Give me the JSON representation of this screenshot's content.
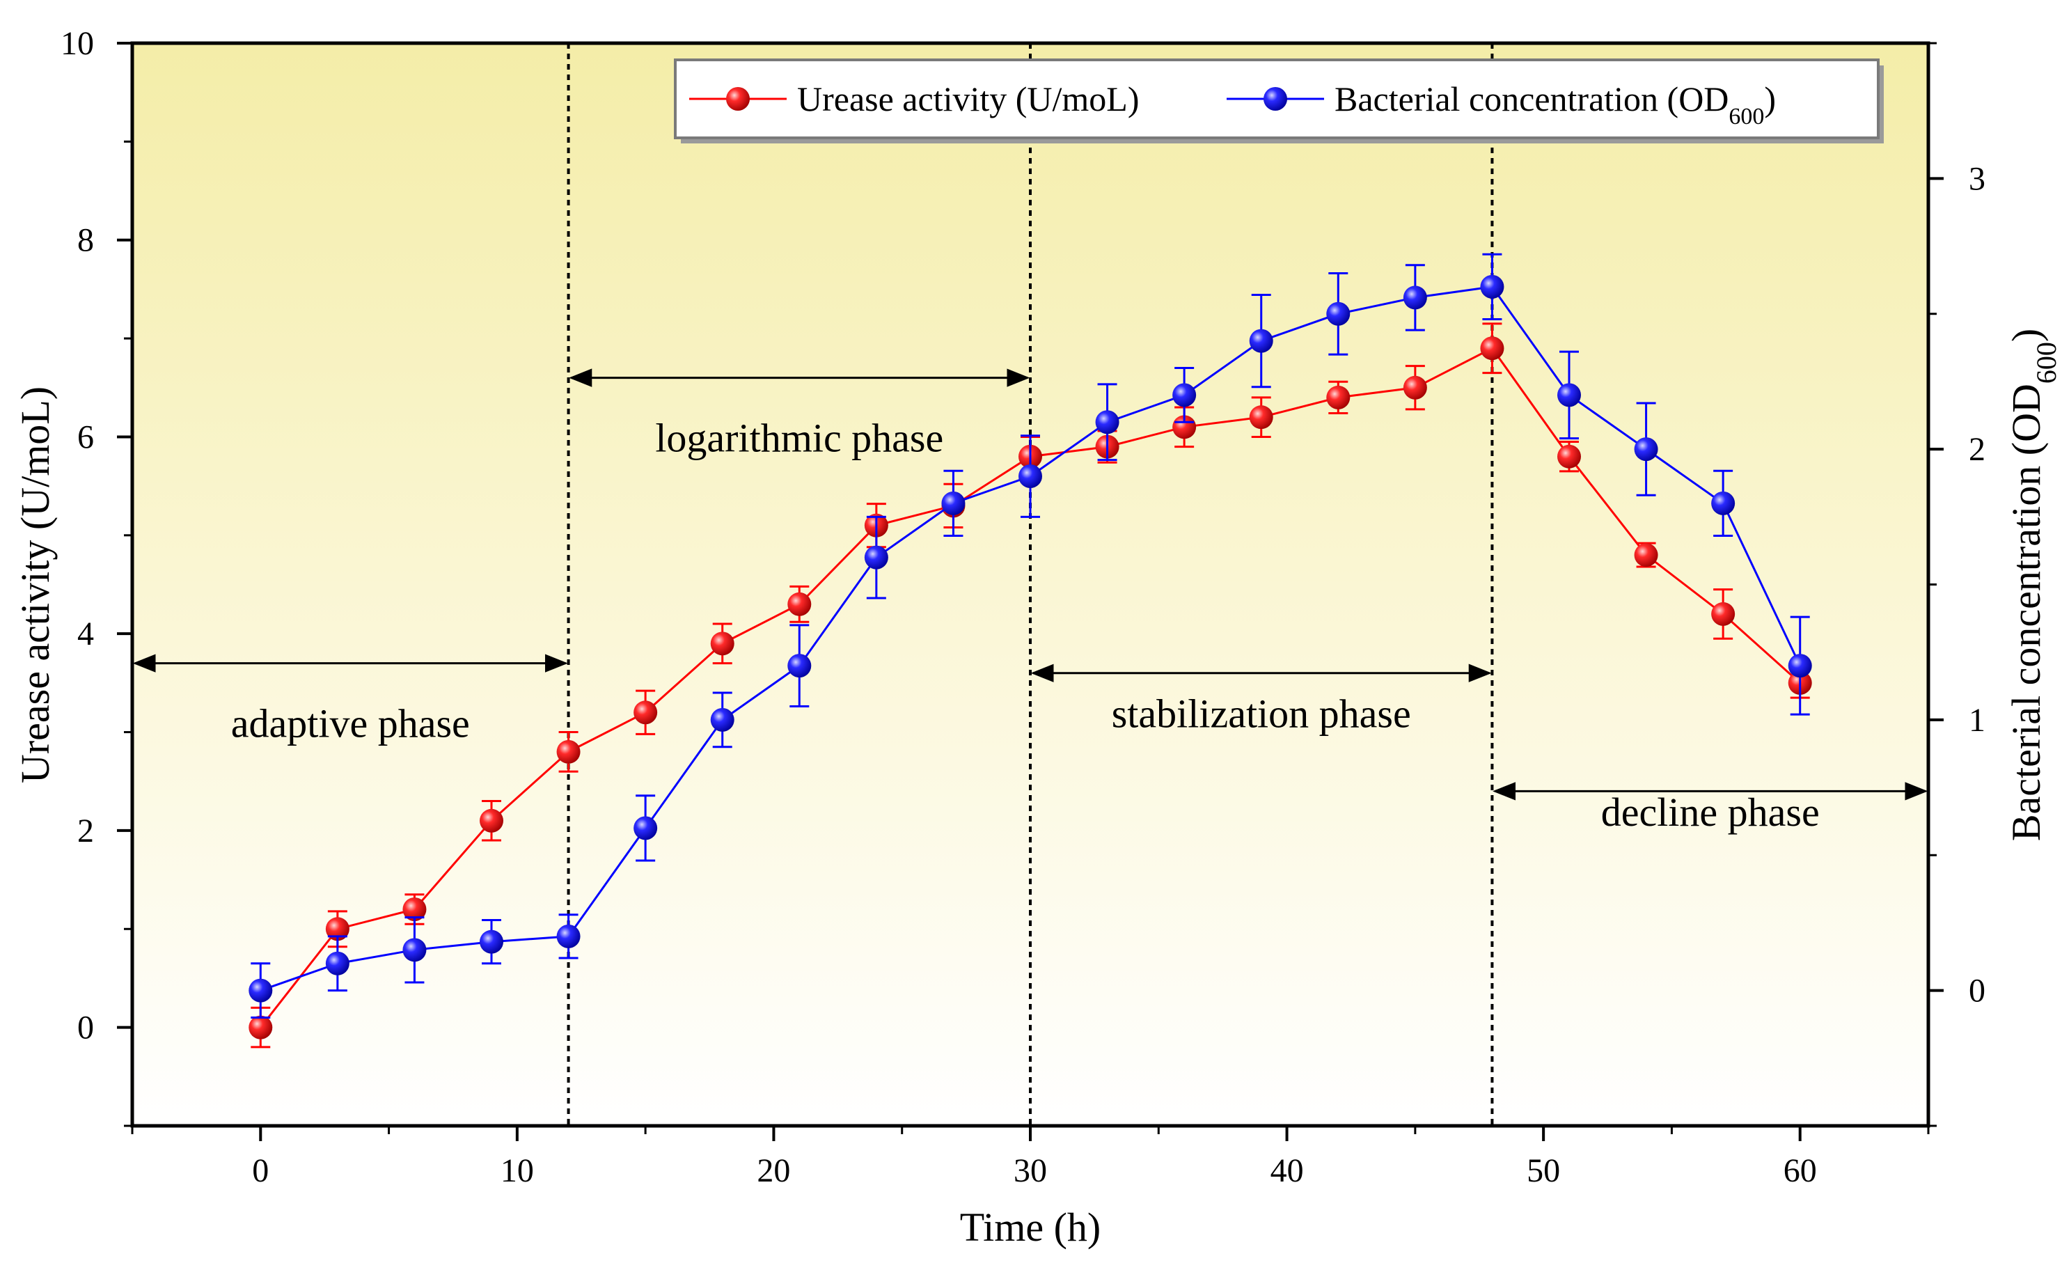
{
  "chart_data": {
    "type": "line",
    "title": "",
    "xlabel": "Time (h)",
    "ylabel": "Urease activity (U/moL)",
    "y2label": {
      "main": "Bacterial concentration (OD",
      "sub": "600",
      "end": ")"
    },
    "xlim": [
      -5,
      65
    ],
    "ylim": [
      -1,
      10
    ],
    "y2lim": [
      -0.5,
      3.5
    ],
    "xticks": [
      0,
      10,
      20,
      30,
      40,
      50,
      60
    ],
    "yticks": [
      0,
      2,
      4,
      6,
      8,
      10
    ],
    "y2ticks": [
      0,
      1,
      2,
      3
    ],
    "x": [
      0,
      3,
      6,
      9,
      12,
      15,
      18,
      21,
      24,
      27,
      30,
      33,
      36,
      39,
      42,
      45,
      48,
      51,
      54,
      57,
      60
    ],
    "series": [
      {
        "name": "Urease activity (U/moL)",
        "axis": "left",
        "color": "#ff0000",
        "values": [
          0,
          1.0,
          1.2,
          2.1,
          2.8,
          3.2,
          3.9,
          4.3,
          5.1,
          5.3,
          5.8,
          5.9,
          6.1,
          6.2,
          6.4,
          6.5,
          6.9,
          5.8,
          4.8,
          4.2,
          3.5
        ],
        "errors": [
          0.2,
          0.18,
          0.15,
          0.2,
          0.2,
          0.22,
          0.2,
          0.18,
          0.22,
          0.22,
          0.2,
          0.16,
          0.2,
          0.2,
          0.16,
          0.22,
          0.25,
          0.15,
          0.12,
          0.25,
          0.15
        ]
      },
      {
        "name": "Bacterial concentration (OD600)",
        "axis": "right",
        "color": "#0000ff",
        "values": [
          0.0,
          0.1,
          0.15,
          0.18,
          0.2,
          0.6,
          1.0,
          1.2,
          1.6,
          1.8,
          1.9,
          2.1,
          2.2,
          2.4,
          2.5,
          2.56,
          2.6,
          2.2,
          2.0,
          1.8,
          1.2
        ],
        "errors": [
          0.1,
          0.1,
          0.12,
          0.08,
          0.08,
          0.12,
          0.1,
          0.15,
          0.15,
          0.12,
          0.15,
          0.14,
          0.1,
          0.17,
          0.15,
          0.12,
          0.12,
          0.16,
          0.17,
          0.12,
          0.18
        ]
      }
    ],
    "legend": {
      "items": [
        {
          "name": "Urease activity (U/moL)",
          "color": "#ff0000"
        },
        {
          "main": "Bacterial concentration (OD",
          "sub": "600",
          "end": ")",
          "color": "#0000ff"
        }
      ],
      "position": "top-right"
    },
    "phase_boundaries": [
      12,
      30,
      48
    ],
    "phases": [
      {
        "label": "adaptive phase",
        "x_start": -5,
        "x_end": 12,
        "arrow_y": 3.7,
        "label_y": 2.95
      },
      {
        "label": "logarithmic phase",
        "x_start": 12,
        "x_end": 30,
        "arrow_y": 6.6,
        "label_y": 5.85
      },
      {
        "label": "stabilization phase",
        "x_start": 30,
        "x_end": 48,
        "arrow_y": 3.6,
        "label_y": 3.05
      },
      {
        "label": "decline phase",
        "x_start": 48,
        "x_end": 65,
        "arrow_y": 2.4,
        "label_y": 2.05
      }
    ],
    "background": "gradient-yellow-top-to-white-bottom"
  }
}
